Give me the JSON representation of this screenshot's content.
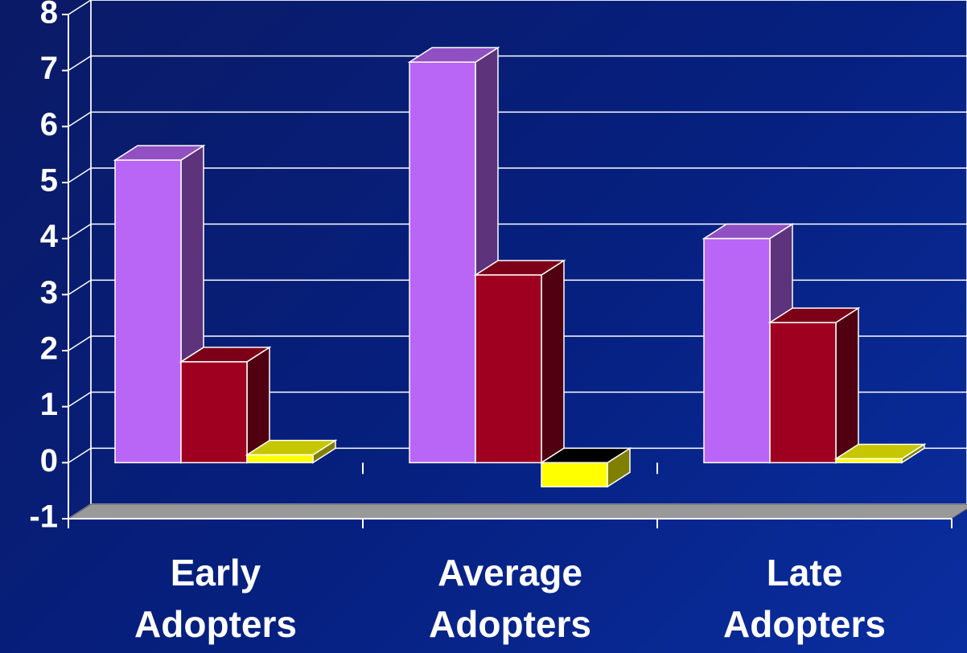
{
  "chart_data": {
    "type": "bar3d",
    "categories": [
      "Early Adopters",
      "Average Adopters",
      "Late Adopters"
    ],
    "series": [
      {
        "color": "#b966f7",
        "values": [
          5.4,
          7.15,
          4.0
        ]
      },
      {
        "color": "#a00020",
        "values": [
          1.8,
          3.35,
          2.5
        ]
      },
      {
        "color": "#ffff00",
        "values": [
          0.14,
          -0.43,
          0.07
        ]
      }
    ],
    "ylim": [
      -1,
      8
    ],
    "yticks": [
      -1,
      0,
      1,
      2,
      3,
      4,
      5,
      6,
      7,
      8
    ],
    "grid": true
  }
}
